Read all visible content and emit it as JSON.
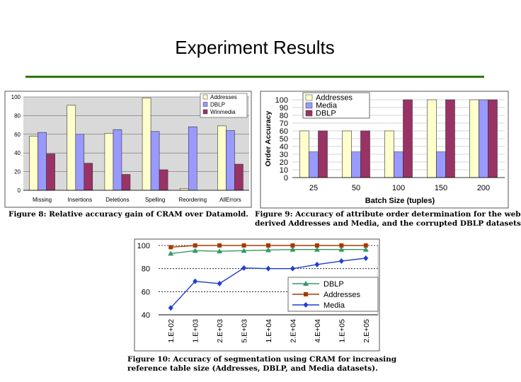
{
  "slide": {
    "title": "Experiment Results",
    "accent_color": "#2b7a12"
  },
  "captions": {
    "fig8": "Figure 8: Relative accuracy gain of CRAM over Datamold.",
    "fig9_line1": "Figure 9: Accuracy of attribute order determination for the web",
    "fig9_line2": "derived Addresses and Media, and the corrupted DBLP datasets",
    "fig10_line1": "Figure 10: Accuracy of segmentation using CRAM for increasing",
    "fig10_line2": "reference table size (Addresses, DBLP, and Media datasets)."
  },
  "chart_data": [
    {
      "id": "fig8",
      "type": "bar",
      "title": "",
      "xlabel": "",
      "ylabel": "",
      "categories": [
        "Missing",
        "Insertions",
        "Deletions",
        "Spelling",
        "Reordering",
        "AllErrors"
      ],
      "series": [
        {
          "name": "Addresses",
          "color": "#ffffcc",
          "values": [
            58,
            91,
            61,
            99,
            2,
            69
          ]
        },
        {
          "name": "DBLP",
          "color": "#9999ff",
          "values": [
            62,
            60,
            65,
            63,
            68,
            64
          ]
        },
        {
          "name": "Winmedia",
          "color": "#993366",
          "values": [
            39,
            29,
            17,
            22,
            0,
            28
          ]
        }
      ],
      "ylim": [
        0,
        100
      ],
      "yticks": [
        0,
        20,
        40,
        60,
        80,
        100
      ],
      "grid": true,
      "legend": "top-right"
    },
    {
      "id": "fig9",
      "type": "bar",
      "title": "",
      "xlabel": "Batch Size (tuples)",
      "ylabel": "Order Accuracy",
      "categories": [
        "25",
        "50",
        "100",
        "150",
        "200"
      ],
      "series": [
        {
          "name": "Addresses",
          "color": "#ffffcc",
          "values": [
            60,
            60,
            60,
            100,
            100
          ]
        },
        {
          "name": "Media",
          "color": "#9999ff",
          "values": [
            33,
            33,
            33,
            33,
            100
          ]
        },
        {
          "name": "DBLP",
          "color": "#993366",
          "values": [
            60,
            60,
            100,
            100,
            100
          ]
        }
      ],
      "ylim": [
        0,
        100
      ],
      "yticks": [
        0,
        10,
        20,
        30,
        40,
        50,
        60,
        70,
        80,
        90,
        100
      ],
      "grid": true,
      "legend": "top-left"
    },
    {
      "id": "fig10",
      "type": "line",
      "title": "",
      "xlabel": "",
      "ylabel": "",
      "categories": [
        "1.E+02",
        "1.E+03",
        "2.E+03",
        "5.E+03",
        "1.E+04",
        "2.E+04",
        "4.E+04",
        "1.E+05",
        "2.E+05"
      ],
      "series": [
        {
          "name": "DBLP",
          "color": "#339966",
          "marker": "triangle",
          "values": [
            93,
            95.5,
            95,
            95.5,
            96,
            96.5,
            96.5,
            96.5,
            96.5
          ]
        },
        {
          "name": "Addresses",
          "color": "#a63a00",
          "marker": "square",
          "values": [
            98.5,
            100,
            100,
            100,
            100,
            100,
            100,
            100,
            100
          ]
        },
        {
          "name": "Media",
          "color": "#1f3fd0",
          "marker": "diamond",
          "values": [
            46,
            69,
            67,
            80.5,
            80,
            80,
            83.5,
            86.5,
            89
          ]
        }
      ],
      "ylim": [
        40,
        100
      ],
      "yticks": [
        40,
        60,
        80,
        100
      ],
      "grid": true,
      "legend": "bottom-right"
    }
  ]
}
